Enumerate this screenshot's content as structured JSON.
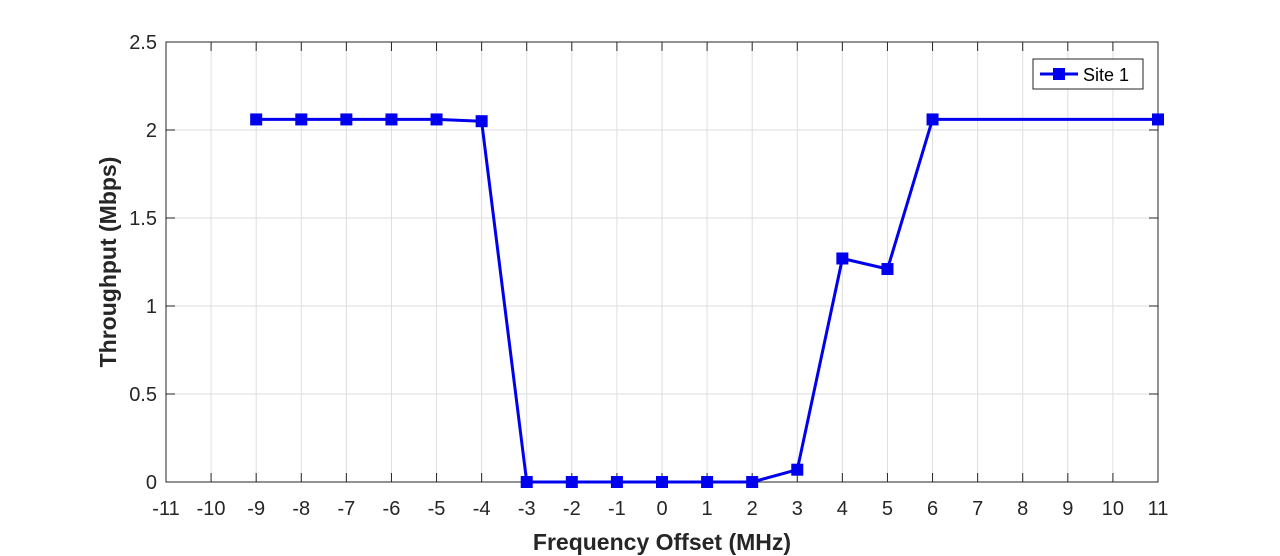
{
  "chart_data": {
    "type": "line",
    "xlabel": "Frequency Offset (MHz)",
    "ylabel": "Throughput (Mbps)",
    "xlim": [
      -11,
      11
    ],
    "ylim": [
      0,
      2.5
    ],
    "xticks": [
      "-11",
      "-10",
      "-9",
      "-8",
      "-7",
      "-6",
      "-5",
      "-4",
      "-3",
      "-2",
      "-1",
      "0",
      "1",
      "2",
      "3",
      "4",
      "5",
      "6",
      "7",
      "8",
      "9",
      "10",
      "11"
    ],
    "yticks": [
      "0",
      "0.5",
      "1",
      "1.5",
      "2",
      "2.5"
    ],
    "grid": true,
    "legend_position": "top-right",
    "series": [
      {
        "name": "Site 1",
        "color": "#0000ee",
        "marker": "square",
        "x": [
          -9,
          -8,
          -7,
          -6,
          -5,
          -4,
          -3,
          -2,
          -1,
          0,
          1,
          2,
          3,
          4,
          5,
          6,
          11
        ],
        "y": [
          2.06,
          2.06,
          2.06,
          2.06,
          2.06,
          2.05,
          0,
          0,
          0,
          0,
          0,
          0,
          0.07,
          1.27,
          1.21,
          2.06,
          2.06
        ]
      }
    ]
  }
}
